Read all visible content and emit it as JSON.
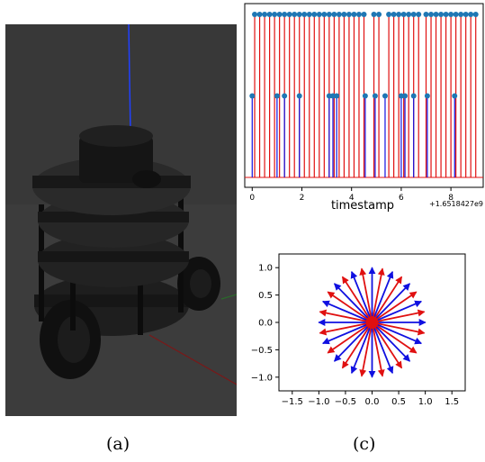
{
  "captions": {
    "left": "(a)",
    "right": "(c)"
  },
  "colors": {
    "red": "#e01010",
    "blue": "#1010e0",
    "marker": "#1f77b4",
    "sim_background": "#3c3c3c"
  },
  "chart_data": [
    {
      "type": "stem",
      "xlabel": "timestamp",
      "offset_label": "+1.6518427e9",
      "xticks": [
        "0",
        "2",
        "4",
        "6",
        "8"
      ],
      "xlim": [
        -0.3,
        9.3
      ],
      "ylim": [
        0,
        1.05
      ],
      "series": [
        {
          "color": "#e01010",
          "value": 1,
          "x": [
            0.1,
            0.3,
            0.5,
            0.7,
            0.9,
            1.1,
            1.3,
            1.5,
            1.7,
            1.9,
            2.1,
            2.3,
            2.5,
            2.7,
            2.9,
            3.1,
            3.3,
            3.5,
            3.7,
            3.9,
            4.1,
            4.3,
            4.5,
            4.9,
            5.1,
            5.5,
            5.7,
            5.9,
            6.1,
            6.3,
            6.5,
            6.7,
            7.0,
            7.2,
            7.4,
            7.6,
            7.8,
            8.0,
            8.2,
            8.4,
            8.6,
            8.8,
            9.0
          ]
        },
        {
          "color": "#1010e0",
          "value": 0.5,
          "x": [
            0.0,
            1.0,
            1.3,
            1.9,
            3.1,
            3.25,
            3.4,
            4.55,
            4.95,
            5.35,
            6.0,
            6.15,
            6.5,
            7.05,
            8.15
          ]
        }
      ]
    },
    {
      "type": "quiver",
      "xticks": [
        "−1.5",
        "−1.0",
        "−0.5",
        "0.0",
        "0.5",
        "1.0",
        "1.5"
      ],
      "yticks": [
        "1.0",
        "0.5",
        "0.0",
        "−0.5",
        "−1.0"
      ],
      "xlim": [
        -1.75,
        1.75
      ],
      "ylim": [
        -1.25,
        1.25
      ],
      "origin": [
        0,
        0
      ],
      "length": 1.0,
      "arrow_count": 32,
      "colors_cycle": [
        "#1010e0",
        "#e01010"
      ]
    }
  ]
}
